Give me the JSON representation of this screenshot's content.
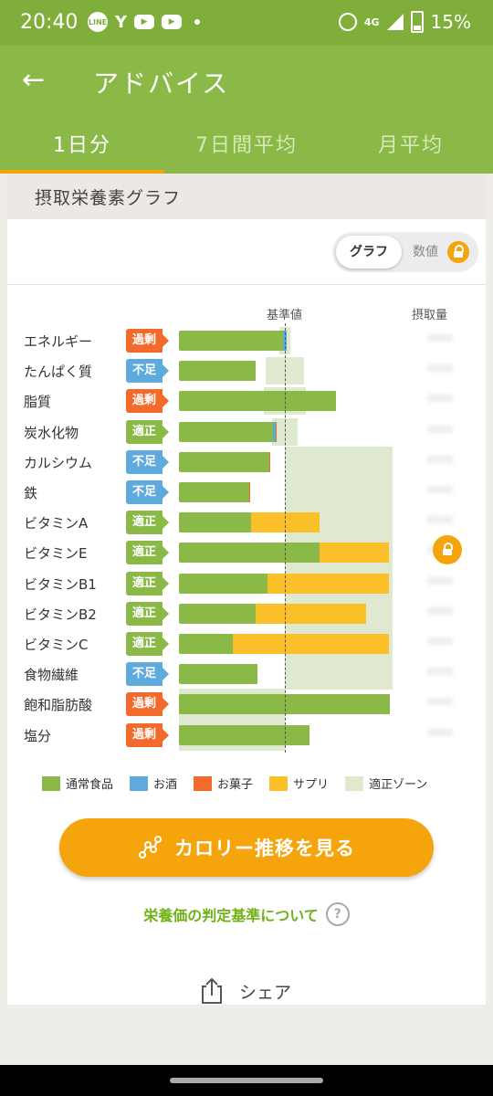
{
  "status_bar": {
    "time": "20:40",
    "battery": "15%",
    "network": "4G"
  },
  "app_bar": {
    "title": "アドバイス"
  },
  "tabs": [
    {
      "label": "1日分",
      "active": true
    },
    {
      "label": "7日間平均",
      "active": false
    },
    {
      "label": "月平均",
      "active": false
    }
  ],
  "section": {
    "title": "摂取栄養素グラフ"
  },
  "view_toggle": {
    "graph_label": "グラフ",
    "value_label": "数値",
    "selected": "graph"
  },
  "columns": {
    "reference": "基準値",
    "intake": "摂取量"
  },
  "legend": {
    "normal": "通常食品",
    "alcohol": "お酒",
    "snack": "お菓子",
    "supplement": "サプリ",
    "zone": "適正ゾーン"
  },
  "colors": {
    "normal": "#8ab947",
    "alcohol": "#5eaadd",
    "snack": "#f26a2c",
    "supplement": "#fbbf2a",
    "zone": "#dfe9cf",
    "over": "#f26a2c",
    "low": "#5eaadd",
    "ok": "#8ab947",
    "accent": "#f5a40c"
  },
  "chart_data": {
    "type": "bar",
    "reference_value_percent": 100,
    "zone_shape": "upper_open",
    "nutrients": [
      {
        "name": "エネルギー",
        "status": "過剰",
        "normal": 98,
        "alcohol": 4,
        "snack": 0,
        "supplement": 0,
        "zone_min": 95,
        "zone_max": 105
      },
      {
        "name": "たんぱく質",
        "status": "不足",
        "normal": 72,
        "alcohol": 0,
        "snack": 0,
        "supplement": 0,
        "zone_min": 82,
        "zone_max": 118
      },
      {
        "name": "脂質",
        "status": "過剰",
        "normal": 148,
        "alcohol": 0,
        "snack": 0,
        "supplement": 0,
        "zone_min": 80,
        "zone_max": 120
      },
      {
        "name": "炭水化物",
        "status": "適正",
        "normal": 89,
        "alcohol": 2,
        "snack": 1,
        "supplement": 0,
        "zone_min": 88,
        "zone_max": 112
      },
      {
        "name": "カルシウム",
        "status": "不足",
        "normal": 85,
        "alcohol": 0,
        "snack": 1,
        "supplement": 0,
        "zone_min": 100,
        "zone_max": null
      },
      {
        "name": "鉄",
        "status": "不足",
        "normal": 66,
        "alcohol": 0,
        "snack": 1,
        "supplement": 0,
        "zone_min": 100,
        "zone_max": null
      },
      {
        "name": "ビタミンA",
        "status": "適正",
        "normal": 68,
        "alcohol": 0,
        "snack": 0,
        "supplement": 65,
        "zone_min": 100,
        "zone_max": null
      },
      {
        "name": "ビタミンE",
        "status": "適正",
        "normal": 133,
        "alcohol": 0,
        "snack": 0,
        "supplement": 65,
        "zone_min": 100,
        "zone_max": null
      },
      {
        "name": "ビタミンB1",
        "status": "適正",
        "normal": 84,
        "alcohol": 0,
        "snack": 0,
        "supplement": 114,
        "zone_min": 100,
        "zone_max": null
      },
      {
        "name": "ビタミンB2",
        "status": "適正",
        "normal": 72,
        "alcohol": 0,
        "snack": 0,
        "supplement": 105,
        "zone_min": 100,
        "zone_max": null
      },
      {
        "name": "ビタミンC",
        "status": "適正",
        "normal": 51,
        "alcohol": 0,
        "snack": 0,
        "supplement": 147,
        "zone_min": 100,
        "zone_max": null
      },
      {
        "name": "食物繊維",
        "status": "不足",
        "normal": 74,
        "alcohol": 0,
        "snack": 0,
        "supplement": 0,
        "zone_min": 100,
        "zone_max": null
      },
      {
        "name": "飽和脂肪酸",
        "status": "過剰",
        "normal": 199,
        "alcohol": 0,
        "snack": 0,
        "supplement": 0,
        "zone_min": null,
        "zone_max": 100
      },
      {
        "name": "塩分",
        "status": "過剰",
        "normal": 123,
        "alcohol": 0,
        "snack": 0,
        "supplement": 0,
        "zone_min": null,
        "zone_max": 100
      }
    ]
  },
  "actions": {
    "calorie_button": "カロリー推移を見る",
    "criteria_link": "栄養価の判定基準について",
    "share": "シェア"
  }
}
